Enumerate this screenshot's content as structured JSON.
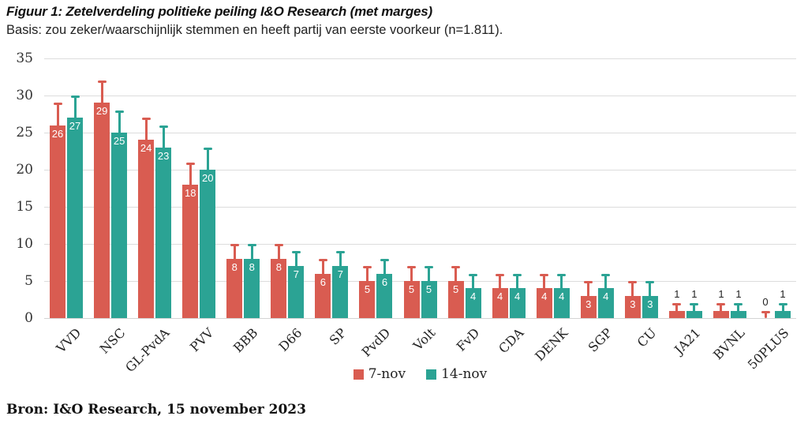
{
  "header": {
    "title": "Figuur 1: Zetelverdeling politieke peiling I&O Research (met marges)",
    "subtitle": "Basis: zou zeker/waarschijnlijk stemmen en heeft partij van eerste voorkeur (n=1.811)."
  },
  "footer": {
    "source": "Bron: I&O Research, 15 november 2023"
  },
  "colors": {
    "series_7nov": "#d95c51",
    "series_14nov": "#2ba394",
    "gridline": "#dcdcdc",
    "inside_bar_label": "#ffffff",
    "outside_bar_label": "#222222"
  },
  "chart_data": {
    "type": "bar",
    "title": "Figuur 1: Zetelverdeling politieke peiling I&O Research (met marges)",
    "subtitle": "Basis: zou zeker/waarschijnlijk stemmen en heeft partij van eerste voorkeur (n=1.811).",
    "source": "Bron: I&O Research, 15 november 2023",
    "categories": [
      "VVD",
      "NSC",
      "GL-PvdA",
      "PVV",
      "BBB",
      "D66",
      "SP",
      "PvdD",
      "Volt",
      "FvD",
      "CDA",
      "DENK",
      "SGP",
      "CU",
      "JA21",
      "BVNL",
      "50PLUS"
    ],
    "series": [
      {
        "name": "7-nov",
        "color": "#d95c51",
        "values": [
          26,
          29,
          24,
          18,
          8,
          8,
          6,
          5,
          5,
          5,
          4,
          4,
          3,
          3,
          1,
          1,
          0
        ],
        "error_upper": [
          29,
          32,
          27,
          21,
          10,
          10,
          8,
          7,
          7,
          7,
          6,
          6,
          5,
          5,
          2,
          2,
          1
        ]
      },
      {
        "name": "14-nov",
        "color": "#2ba394",
        "values": [
          27,
          25,
          23,
          20,
          8,
          7,
          7,
          6,
          5,
          4,
          4,
          4,
          4,
          3,
          1,
          1,
          1
        ],
        "error_upper": [
          30,
          28,
          26,
          23,
          10,
          9,
          9,
          8,
          7,
          6,
          6,
          6,
          6,
          5,
          2,
          2,
          2
        ]
      }
    ],
    "xlabel": "",
    "ylabel": "",
    "ylim": [
      0,
      35
    ],
    "yticks": [
      0,
      5,
      10,
      15,
      20,
      25,
      30,
      35
    ],
    "grid": true,
    "legend_position": "bottom",
    "error_bars": "upper whiskers with caps, colored per series"
  }
}
